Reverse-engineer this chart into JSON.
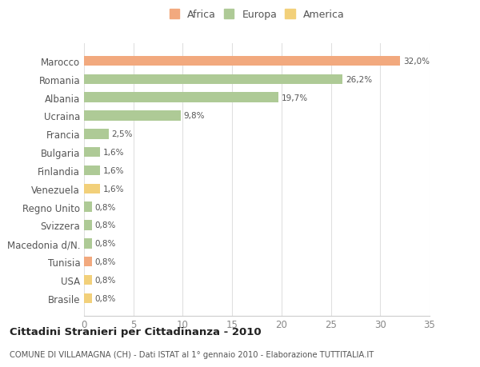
{
  "countries": [
    "Marocco",
    "Romania",
    "Albania",
    "Ucraina",
    "Francia",
    "Bulgaria",
    "Finlandia",
    "Venezuela",
    "Regno Unito",
    "Svizzera",
    "Macedonia d/N.",
    "Tunisia",
    "USA",
    "Brasile"
  ],
  "values": [
    32.0,
    26.2,
    19.7,
    9.8,
    2.5,
    1.6,
    1.6,
    1.6,
    0.8,
    0.8,
    0.8,
    0.8,
    0.8,
    0.8
  ],
  "labels": [
    "32,0%",
    "26,2%",
    "19,7%",
    "9,8%",
    "2,5%",
    "1,6%",
    "1,6%",
    "1,6%",
    "0,8%",
    "0,8%",
    "0,8%",
    "0,8%",
    "0,8%",
    "0,8%"
  ],
  "continents": [
    "Africa",
    "Europa",
    "Europa",
    "Europa",
    "Europa",
    "Europa",
    "Europa",
    "America",
    "Europa",
    "Europa",
    "Europa",
    "Africa",
    "America",
    "America"
  ],
  "colors": {
    "Africa": "#F2A97E",
    "Europa": "#AECA96",
    "America": "#F2D07A"
  },
  "legend": [
    "Africa",
    "Europa",
    "America"
  ],
  "legend_colors": [
    "#F2A97E",
    "#AECA96",
    "#F2D07A"
  ],
  "title": "Cittadini Stranieri per Cittadinanza - 2010",
  "subtitle": "COMUNE DI VILLAMAGNA (CH) - Dati ISTAT al 1° gennaio 2010 - Elaborazione TUTTITALIA.IT",
  "xlim": [
    0,
    35
  ],
  "xticks": [
    0,
    5,
    10,
    15,
    20,
    25,
    30,
    35
  ],
  "bg_color": "#ffffff",
  "grid_color": "#e0e0e0"
}
